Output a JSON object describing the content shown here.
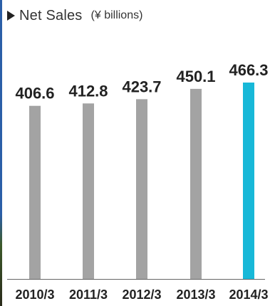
{
  "colors": {
    "bar": "#a3a3a3",
    "highlight": "#17b8d8",
    "axis": "#666666",
    "text": "#222222"
  },
  "chart_data": {
    "type": "bar",
    "title": "Net Sales",
    "subtitle": "(¥ billions)",
    "categories": [
      "2010/3",
      "2011/3",
      "2012/3",
      "2013/3",
      "2014/3"
    ],
    "values": [
      406.6,
      412.8,
      423.7,
      450.1,
      466.3
    ],
    "highlight_index": 4,
    "ylim": [
      0,
      480
    ],
    "xlabel": "",
    "ylabel": "",
    "grid": false,
    "legend": "none"
  }
}
